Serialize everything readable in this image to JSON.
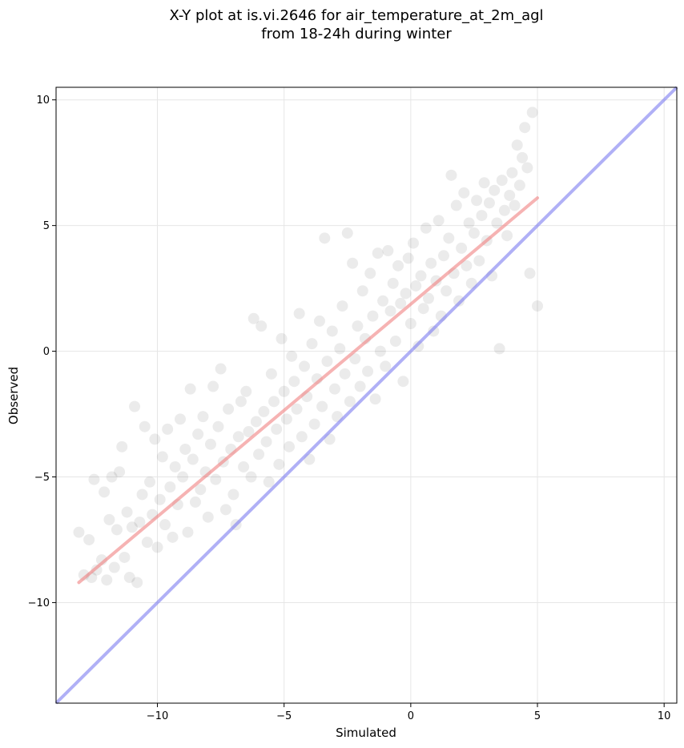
{
  "chart_data": {
    "type": "scatter",
    "title_lines": [
      "X-Y plot at is.vi.2646 for air_temperature_at_2m_agl",
      "from 18-24h during winter"
    ],
    "xlabel": "Simulated",
    "ylabel": "Observed",
    "xlim": [
      -14,
      10.5
    ],
    "ylim": [
      -14,
      10.5
    ],
    "xticks": [
      -10,
      -5,
      0,
      5,
      10
    ],
    "yticks": [
      -10,
      -5,
      0,
      5,
      10
    ],
    "tick_labels": [
      "−10",
      "−5",
      "0",
      "5",
      "10"
    ],
    "grid": true,
    "point_color": "#000000",
    "point_alpha": 0.08,
    "points": [
      [
        -13.1,
        -7.2
      ],
      [
        -12.9,
        -8.9
      ],
      [
        -12.7,
        -7.5
      ],
      [
        -12.6,
        -9.0
      ],
      [
        -12.5,
        -5.1
      ],
      [
        -12.4,
        -8.7
      ],
      [
        -12.2,
        -8.3
      ],
      [
        -12.1,
        -5.6
      ],
      [
        -12.0,
        -9.1
      ],
      [
        -11.9,
        -6.7
      ],
      [
        -11.8,
        -5.0
      ],
      [
        -11.7,
        -8.6
      ],
      [
        -11.6,
        -7.1
      ],
      [
        -11.5,
        -4.8
      ],
      [
        -11.4,
        -3.8
      ],
      [
        -11.3,
        -8.2
      ],
      [
        -11.2,
        -6.4
      ],
      [
        -11.1,
        -9.0
      ],
      [
        -11.0,
        -7.0
      ],
      [
        -10.9,
        -2.2
      ],
      [
        -10.8,
        -9.2
      ],
      [
        -10.7,
        -6.8
      ],
      [
        -10.6,
        -5.7
      ],
      [
        -10.5,
        -3.0
      ],
      [
        -10.4,
        -7.6
      ],
      [
        -10.3,
        -5.2
      ],
      [
        -10.2,
        -6.5
      ],
      [
        -10.1,
        -3.5
      ],
      [
        -10.0,
        -7.8
      ],
      [
        -9.9,
        -5.9
      ],
      [
        -9.8,
        -4.2
      ],
      [
        -9.7,
        -6.9
      ],
      [
        -9.6,
        -3.1
      ],
      [
        -9.5,
        -5.4
      ],
      [
        -9.4,
        -7.4
      ],
      [
        -9.3,
        -4.6
      ],
      [
        -9.2,
        -6.1
      ],
      [
        -9.1,
        -2.7
      ],
      [
        -9.0,
        -5.0
      ],
      [
        -8.9,
        -3.9
      ],
      [
        -8.8,
        -7.2
      ],
      [
        -8.7,
        -1.5
      ],
      [
        -8.6,
        -4.3
      ],
      [
        -8.5,
        -6.0
      ],
      [
        -8.4,
        -3.3
      ],
      [
        -8.3,
        -5.5
      ],
      [
        -8.2,
        -2.6
      ],
      [
        -8.1,
        -4.8
      ],
      [
        -8.0,
        -6.6
      ],
      [
        -7.9,
        -3.7
      ],
      [
        -7.8,
        -1.4
      ],
      [
        -7.7,
        -5.1
      ],
      [
        -7.6,
        -3.0
      ],
      [
        -7.5,
        -0.7
      ],
      [
        -7.4,
        -4.4
      ],
      [
        -7.3,
        -6.3
      ],
      [
        -7.2,
        -2.3
      ],
      [
        -7.1,
        -3.9
      ],
      [
        -7.0,
        -5.7
      ],
      [
        -6.9,
        -6.9
      ],
      [
        -6.8,
        -3.4
      ],
      [
        -6.7,
        -2.0
      ],
      [
        -6.6,
        -4.6
      ],
      [
        -6.5,
        -1.6
      ],
      [
        -6.4,
        -3.2
      ],
      [
        -6.3,
        -5.0
      ],
      [
        -6.2,
        1.3
      ],
      [
        -6.1,
        -2.8
      ],
      [
        -6.0,
        -4.1
      ],
      [
        -5.9,
        1.0
      ],
      [
        -5.8,
        -2.4
      ],
      [
        -5.7,
        -3.6
      ],
      [
        -5.6,
        -5.2
      ],
      [
        -5.5,
        -0.9
      ],
      [
        -5.4,
        -2.0
      ],
      [
        -5.3,
        -3.1
      ],
      [
        -5.2,
        -4.5
      ],
      [
        -5.1,
        0.5
      ],
      [
        -5.0,
        -1.6
      ],
      [
        -4.9,
        -2.7
      ],
      [
        -4.8,
        -3.8
      ],
      [
        -4.7,
        -0.2
      ],
      [
        -4.6,
        -1.2
      ],
      [
        -4.5,
        -2.3
      ],
      [
        -4.4,
        1.5
      ],
      [
        -4.3,
        -3.4
      ],
      [
        -4.2,
        -0.6
      ],
      [
        -4.1,
        -1.8
      ],
      [
        -4.0,
        -4.3
      ],
      [
        -3.9,
        0.3
      ],
      [
        -3.8,
        -2.9
      ],
      [
        -3.7,
        -1.1
      ],
      [
        -3.6,
        1.2
      ],
      [
        -3.5,
        -2.2
      ],
      [
        -3.4,
        4.5
      ],
      [
        -3.3,
        -0.4
      ],
      [
        -3.2,
        -3.5
      ],
      [
        -3.1,
        0.8
      ],
      [
        -3.0,
        -1.5
      ],
      [
        -2.9,
        -2.6
      ],
      [
        -2.8,
        0.1
      ],
      [
        -2.7,
        1.8
      ],
      [
        -2.6,
        -0.9
      ],
      [
        -2.5,
        4.7
      ],
      [
        -2.4,
        -2.0
      ],
      [
        -2.3,
        3.5
      ],
      [
        -2.2,
        -0.3
      ],
      [
        -2.1,
        1.0
      ],
      [
        -2.0,
        -1.4
      ],
      [
        -1.9,
        2.4
      ],
      [
        -1.8,
        0.5
      ],
      [
        -1.7,
        -0.8
      ],
      [
        -1.6,
        3.1
      ],
      [
        -1.5,
        1.4
      ],
      [
        -1.4,
        -1.9
      ],
      [
        -1.3,
        3.9
      ],
      [
        -1.2,
        0.0
      ],
      [
        -1.1,
        2.0
      ],
      [
        -1.0,
        -0.6
      ],
      [
        -0.9,
        4.0
      ],
      [
        -0.8,
        1.6
      ],
      [
        -0.7,
        2.7
      ],
      [
        -0.6,
        0.4
      ],
      [
        -0.5,
        3.4
      ],
      [
        -0.4,
        1.9
      ],
      [
        -0.3,
        -1.2
      ],
      [
        -0.2,
        2.3
      ],
      [
        -0.1,
        3.7
      ],
      [
        0.0,
        1.1
      ],
      [
        0.1,
        4.3
      ],
      [
        0.2,
        2.6
      ],
      [
        0.3,
        0.2
      ],
      [
        0.4,
        3.0
      ],
      [
        0.5,
        1.7
      ],
      [
        0.6,
        4.9
      ],
      [
        0.7,
        2.1
      ],
      [
        0.8,
        3.5
      ],
      [
        0.9,
        0.8
      ],
      [
        1.0,
        2.8
      ],
      [
        1.1,
        5.2
      ],
      [
        1.2,
        1.4
      ],
      [
        1.3,
        3.8
      ],
      [
        1.4,
        2.4
      ],
      [
        1.5,
        4.5
      ],
      [
        1.6,
        7.0
      ],
      [
        1.7,
        3.1
      ],
      [
        1.8,
        5.8
      ],
      [
        1.9,
        2.0
      ],
      [
        2.0,
        4.1
      ],
      [
        2.1,
        6.3
      ],
      [
        2.2,
        3.4
      ],
      [
        2.3,
        5.1
      ],
      [
        2.4,
        2.7
      ],
      [
        2.5,
        4.7
      ],
      [
        2.6,
        6.0
      ],
      [
        2.7,
        3.6
      ],
      [
        2.8,
        5.4
      ],
      [
        2.9,
        6.7
      ],
      [
        3.0,
        4.4
      ],
      [
        3.1,
        5.9
      ],
      [
        3.2,
        3.0
      ],
      [
        3.3,
        6.4
      ],
      [
        3.4,
        5.1
      ],
      [
        3.5,
        0.1
      ],
      [
        3.6,
        6.8
      ],
      [
        3.7,
        5.6
      ],
      [
        3.8,
        4.6
      ],
      [
        3.9,
        6.2
      ],
      [
        4.0,
        7.1
      ],
      [
        4.1,
        5.8
      ],
      [
        4.2,
        8.2
      ],
      [
        4.3,
        6.6
      ],
      [
        4.4,
        7.7
      ],
      [
        4.5,
        8.9
      ],
      [
        4.6,
        7.3
      ],
      [
        4.7,
        3.1
      ],
      [
        4.8,
        9.5
      ],
      [
        5.0,
        1.8
      ]
    ],
    "fit_line": {
      "x": [
        -13.1,
        5.0
      ],
      "y": [
        -9.2,
        6.1
      ],
      "color": "#f08080",
      "alpha": 0.6
    },
    "identity_line": {
      "x": [
        -14,
        10.5
      ],
      "y": [
        -14,
        10.5
      ],
      "color": "#7b7bf0",
      "alpha": 0.6
    }
  }
}
